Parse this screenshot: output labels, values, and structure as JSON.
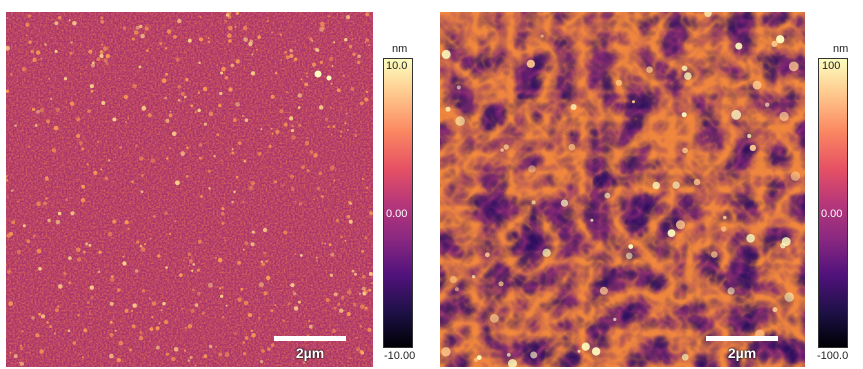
{
  "panels": [
    {
      "id": "left",
      "scale_label": "2µm",
      "colorbar": {
        "unit": "nm",
        "max": "10.0",
        "mid": "0.00",
        "min": "-10.00"
      }
    },
    {
      "id": "right",
      "scale_label": "2µm",
      "colorbar": {
        "unit": "nm",
        "max": "100",
        "mid": "0.00",
        "min": "-100.0"
      }
    }
  ],
  "colormap": [
    "#000004",
    "#1d1147",
    "#51127c",
    "#8c2981",
    "#b73779",
    "#e65164",
    "#fb8861",
    "#fec98d",
    "#fcfdbf"
  ]
}
